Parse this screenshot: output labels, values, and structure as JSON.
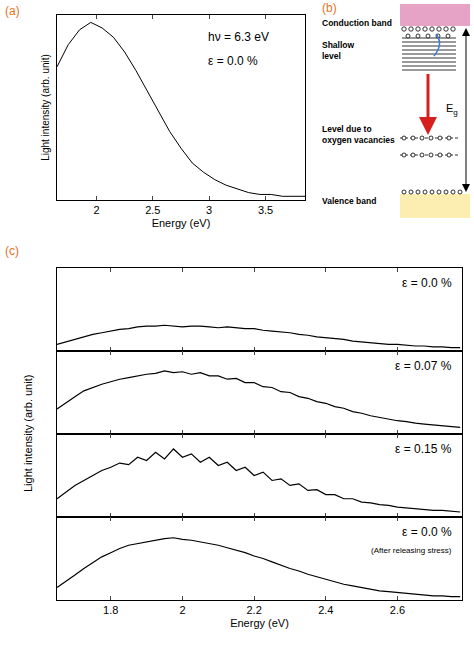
{
  "chart_data": [
    {
      "panel": "(a)",
      "type": "line",
      "x": [
        1.65,
        1.75,
        1.85,
        1.95,
        2.05,
        2.15,
        2.25,
        2.35,
        2.45,
        2.55,
        2.65,
        2.75,
        2.85,
        2.95,
        3.05,
        3.15,
        3.25,
        3.35,
        3.45,
        3.55,
        3.65,
        3.75,
        3.85
      ],
      "values": [
        0.72,
        0.84,
        0.92,
        0.96,
        0.93,
        0.88,
        0.8,
        0.7,
        0.59,
        0.48,
        0.37,
        0.28,
        0.2,
        0.15,
        0.11,
        0.08,
        0.06,
        0.04,
        0.03,
        0.03,
        0.02,
        0.02,
        0.02
      ],
      "color": "#000000",
      "xlim": [
        1.65,
        3.85
      ],
      "xticks": [
        2,
        2.5,
        3,
        3.5
      ],
      "ylim": [
        0,
        1
      ],
      "tick_labels": "x",
      "grid": false,
      "xlabel": "Energy (eV)",
      "ylabel": "Light intensity (arb. unit)",
      "annotations": [
        "hν = 6.3 eV",
        "ε = 0.0 %"
      ]
    },
    {
      "panel": "(c)",
      "type": "line",
      "x": [
        1.65,
        1.675,
        1.7,
        1.725,
        1.75,
        1.775,
        1.8,
        1.825,
        1.85,
        1.875,
        1.9,
        1.925,
        1.95,
        1.975,
        2.0,
        2.025,
        2.05,
        2.075,
        2.1,
        2.125,
        2.15,
        2.175,
        2.2,
        2.225,
        2.25,
        2.275,
        2.3,
        2.325,
        2.35,
        2.375,
        2.4,
        2.425,
        2.45,
        2.475,
        2.5,
        2.525,
        2.55,
        2.575,
        2.6,
        2.625,
        2.65,
        2.675,
        2.7,
        2.725,
        2.75,
        2.775
      ],
      "series": [
        {
          "name": "ε = 0.0 %",
          "color": "#000000",
          "values": [
            0.08,
            0.11,
            0.14,
            0.17,
            0.2,
            0.22,
            0.24,
            0.26,
            0.27,
            0.29,
            0.3,
            0.3,
            0.31,
            0.3,
            0.29,
            0.3,
            0.3,
            0.29,
            0.28,
            0.29,
            0.28,
            0.27,
            0.27,
            0.25,
            0.24,
            0.23,
            0.22,
            0.2,
            0.19,
            0.17,
            0.16,
            0.15,
            0.14,
            0.12,
            0.11,
            0.1,
            0.09,
            0.08,
            0.08,
            0.07,
            0.06,
            0.06,
            0.05,
            0.05,
            0.04,
            0.04
          ]
        },
        {
          "name": "ε = 0.07 %",
          "color": "#000000",
          "values": [
            0.3,
            0.38,
            0.45,
            0.52,
            0.56,
            0.6,
            0.63,
            0.66,
            0.68,
            0.7,
            0.72,
            0.73,
            0.76,
            0.74,
            0.75,
            0.72,
            0.74,
            0.7,
            0.7,
            0.66,
            0.67,
            0.62,
            0.62,
            0.57,
            0.56,
            0.51,
            0.5,
            0.45,
            0.43,
            0.39,
            0.37,
            0.33,
            0.31,
            0.27,
            0.25,
            0.22,
            0.2,
            0.18,
            0.16,
            0.15,
            0.13,
            0.12,
            0.11,
            0.1,
            0.09,
            0.08
          ]
        },
        {
          "name": "ε = 0.15 %",
          "color": "#000000",
          "values": [
            0.22,
            0.3,
            0.38,
            0.44,
            0.5,
            0.56,
            0.6,
            0.65,
            0.63,
            0.72,
            0.68,
            0.78,
            0.7,
            0.82,
            0.72,
            0.76,
            0.66,
            0.72,
            0.62,
            0.66,
            0.56,
            0.6,
            0.5,
            0.54,
            0.44,
            0.46,
            0.38,
            0.4,
            0.32,
            0.33,
            0.27,
            0.27,
            0.22,
            0.22,
            0.18,
            0.17,
            0.15,
            0.14,
            0.12,
            0.11,
            0.1,
            0.09,
            0.08,
            0.08,
            0.07,
            0.06
          ]
        },
        {
          "name": "ε = 0.0 %",
          "annotation": "(After releasing stress)",
          "color": "#000000",
          "values": [
            0.15,
            0.22,
            0.3,
            0.38,
            0.45,
            0.52,
            0.57,
            0.62,
            0.66,
            0.68,
            0.7,
            0.72,
            0.74,
            0.75,
            0.73,
            0.72,
            0.7,
            0.68,
            0.66,
            0.63,
            0.6,
            0.57,
            0.53,
            0.5,
            0.46,
            0.42,
            0.38,
            0.35,
            0.31,
            0.28,
            0.25,
            0.22,
            0.19,
            0.17,
            0.15,
            0.13,
            0.11,
            0.1,
            0.09,
            0.08,
            0.07,
            0.06,
            0.05,
            0.05,
            0.04,
            0.04
          ]
        }
      ],
      "xlim": [
        1.65,
        2.78
      ],
      "xticks": [
        1.8,
        2,
        2.2,
        2.4,
        2.6
      ],
      "ylim": [
        0,
        1
      ],
      "tick_labels": "x",
      "grid": false,
      "xlabel": "Energy (eV)",
      "ylabel": "Light intensity (arb. unit)"
    }
  ],
  "diagram": {
    "panel": "(b)",
    "conduction_band": "Conduction band",
    "shallow_level": "Shallow level",
    "oxygen_level": "Level due to oxygen vacancies",
    "valence_band": "Valence band",
    "gap": {
      "symbol": "E",
      "subscript": "g"
    }
  }
}
